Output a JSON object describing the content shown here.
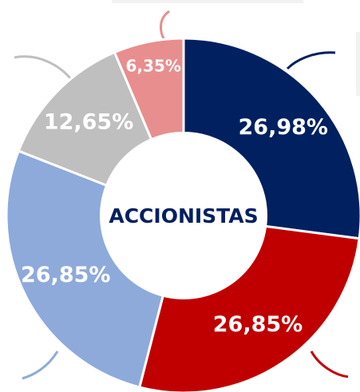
{
  "chart_data": {
    "type": "donut",
    "center_label": "ACCIONISTAS",
    "values": [
      26.98,
      26.85,
      26.85,
      12.65,
      6.35
    ],
    "value_labels": [
      "26,98%",
      "26,85%",
      "26,85%",
      "12,65%",
      "6,35%"
    ],
    "colors": [
      "#002060",
      "#c00000",
      "#8eaadb",
      "#bfbfbf",
      "#e88e8e"
    ]
  }
}
